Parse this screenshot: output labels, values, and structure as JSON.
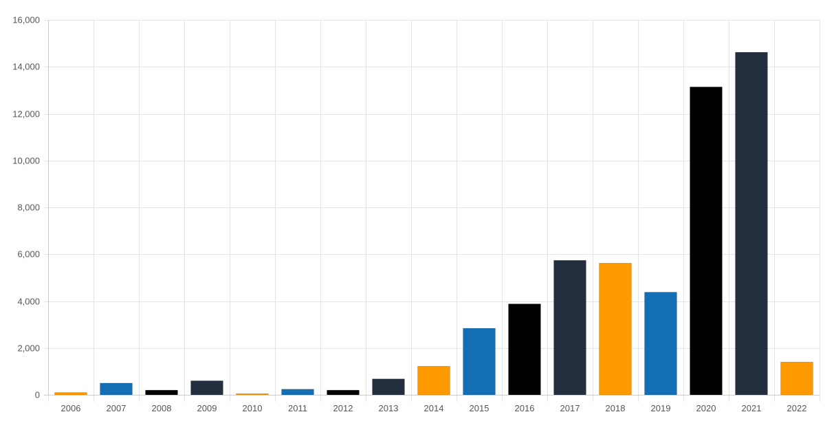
{
  "chart_data": {
    "type": "bar",
    "title": "",
    "xlabel": "",
    "ylabel": "",
    "categories": [
      "2006",
      "2007",
      "2008",
      "2009",
      "2010",
      "2011",
      "2012",
      "2013",
      "2014",
      "2015",
      "2016",
      "2017",
      "2018",
      "2019",
      "2020",
      "2021",
      "2022"
    ],
    "values": [
      100,
      500,
      200,
      600,
      50,
      240,
      200,
      680,
      1220,
      2840,
      3880,
      5740,
      5620,
      4380,
      13140,
      14620,
      1400
    ],
    "bar_colors": [
      "#ff9900",
      "#146eb4",
      "#000000",
      "#232f3e",
      "#ff9900",
      "#146eb4",
      "#000000",
      "#232f3e",
      "#ff9900",
      "#146eb4",
      "#000000",
      "#232f3e",
      "#ff9900",
      "#146eb4",
      "#000000",
      "#232f3e",
      "#ff9900"
    ],
    "ylim": [
      0,
      16000
    ],
    "y_ticks": [
      0,
      2000,
      4000,
      6000,
      8000,
      10000,
      12000,
      14000,
      16000
    ],
    "y_tick_labels": [
      "0",
      "2,000",
      "4,000",
      "6,000",
      "8,000",
      "10,000",
      "12,000",
      "14,000",
      "16,000"
    ],
    "grid": true,
    "legend": "none"
  }
}
